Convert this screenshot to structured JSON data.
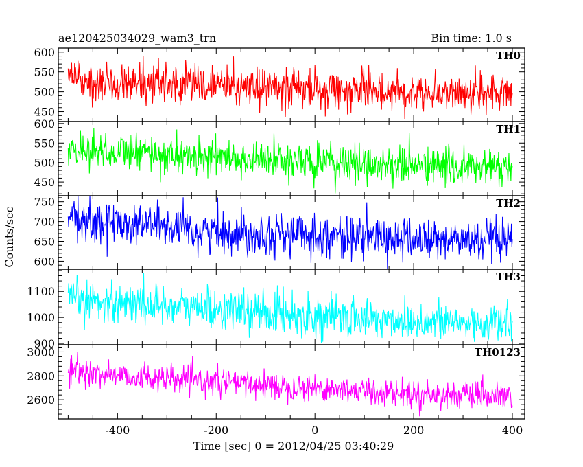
{
  "header": {
    "file_label": "ae120425034029_wam3_trn",
    "bin_time_label": "Bin time: 1.0 s"
  },
  "chart_data": {
    "type": "line",
    "title": "ae120425034029_wam3_trn",
    "subtitle": "Bin time: 1.0 s",
    "xlabel": "Time [sec] 0 = 2012/04/25 03:40:29",
    "ylabel": "Counts/sec",
    "xlim": [
      -520,
      425
    ],
    "x_ticks": [
      -400,
      -200,
      0,
      200,
      400
    ],
    "x_range": [
      -500,
      400
    ],
    "bin_time": 1.0,
    "grid": false,
    "panels": [
      {
        "name": "TH0",
        "color": "#ff0000",
        "ylim": [
          425,
          610
        ],
        "y_ticks": [
          450,
          500,
          550,
          600
        ],
        "trend": [
          {
            "x": -500,
            "y": 530
          },
          {
            "x": -300,
            "y": 522
          },
          {
            "x": 0,
            "y": 505
          },
          {
            "x": 200,
            "y": 500
          },
          {
            "x": 400,
            "y": 495
          }
        ],
        "noise": 24
      },
      {
        "name": "TH1",
        "color": "#00ff00",
        "ylim": [
          415,
          605
        ],
        "y_ticks": [
          450,
          500,
          550,
          600
        ],
        "trend": [
          {
            "x": -500,
            "y": 535
          },
          {
            "x": -300,
            "y": 520
          },
          {
            "x": 0,
            "y": 500
          },
          {
            "x": 200,
            "y": 492
          },
          {
            "x": 400,
            "y": 485
          }
        ],
        "noise": 24
      },
      {
        "name": "TH2",
        "color": "#0000ff",
        "ylim": [
          580,
          765
        ],
        "y_ticks": [
          600,
          650,
          700,
          750
        ],
        "trend": [
          {
            "x": -500,
            "y": 700
          },
          {
            "x": -310,
            "y": 695
          },
          {
            "x": -300,
            "y": 678
          },
          {
            "x": 0,
            "y": 665
          },
          {
            "x": 200,
            "y": 655
          },
          {
            "x": 400,
            "y": 648
          }
        ],
        "noise": 26
      },
      {
        "name": "TH3",
        "color": "#00ffff",
        "ylim": [
          895,
          1185
        ],
        "y_ticks": [
          900,
          1000,
          1100
        ],
        "trend": [
          {
            "x": -500,
            "y": 1070
          },
          {
            "x": -300,
            "y": 1045
          },
          {
            "x": 0,
            "y": 1005
          },
          {
            "x": 200,
            "y": 985
          },
          {
            "x": 400,
            "y": 975
          }
        ],
        "noise": 38
      },
      {
        "name": "TH0123",
        "color": "#ff00ff",
        "ylim": [
          2440,
          3060
        ],
        "y_ticks": [
          2600,
          2800,
          3000
        ],
        "trend": [
          {
            "x": -500,
            "y": 2840
          },
          {
            "x": -300,
            "y": 2770
          },
          {
            "x": 0,
            "y": 2700
          },
          {
            "x": 200,
            "y": 2650
          },
          {
            "x": 400,
            "y": 2620
          }
        ],
        "noise": 55
      }
    ]
  }
}
